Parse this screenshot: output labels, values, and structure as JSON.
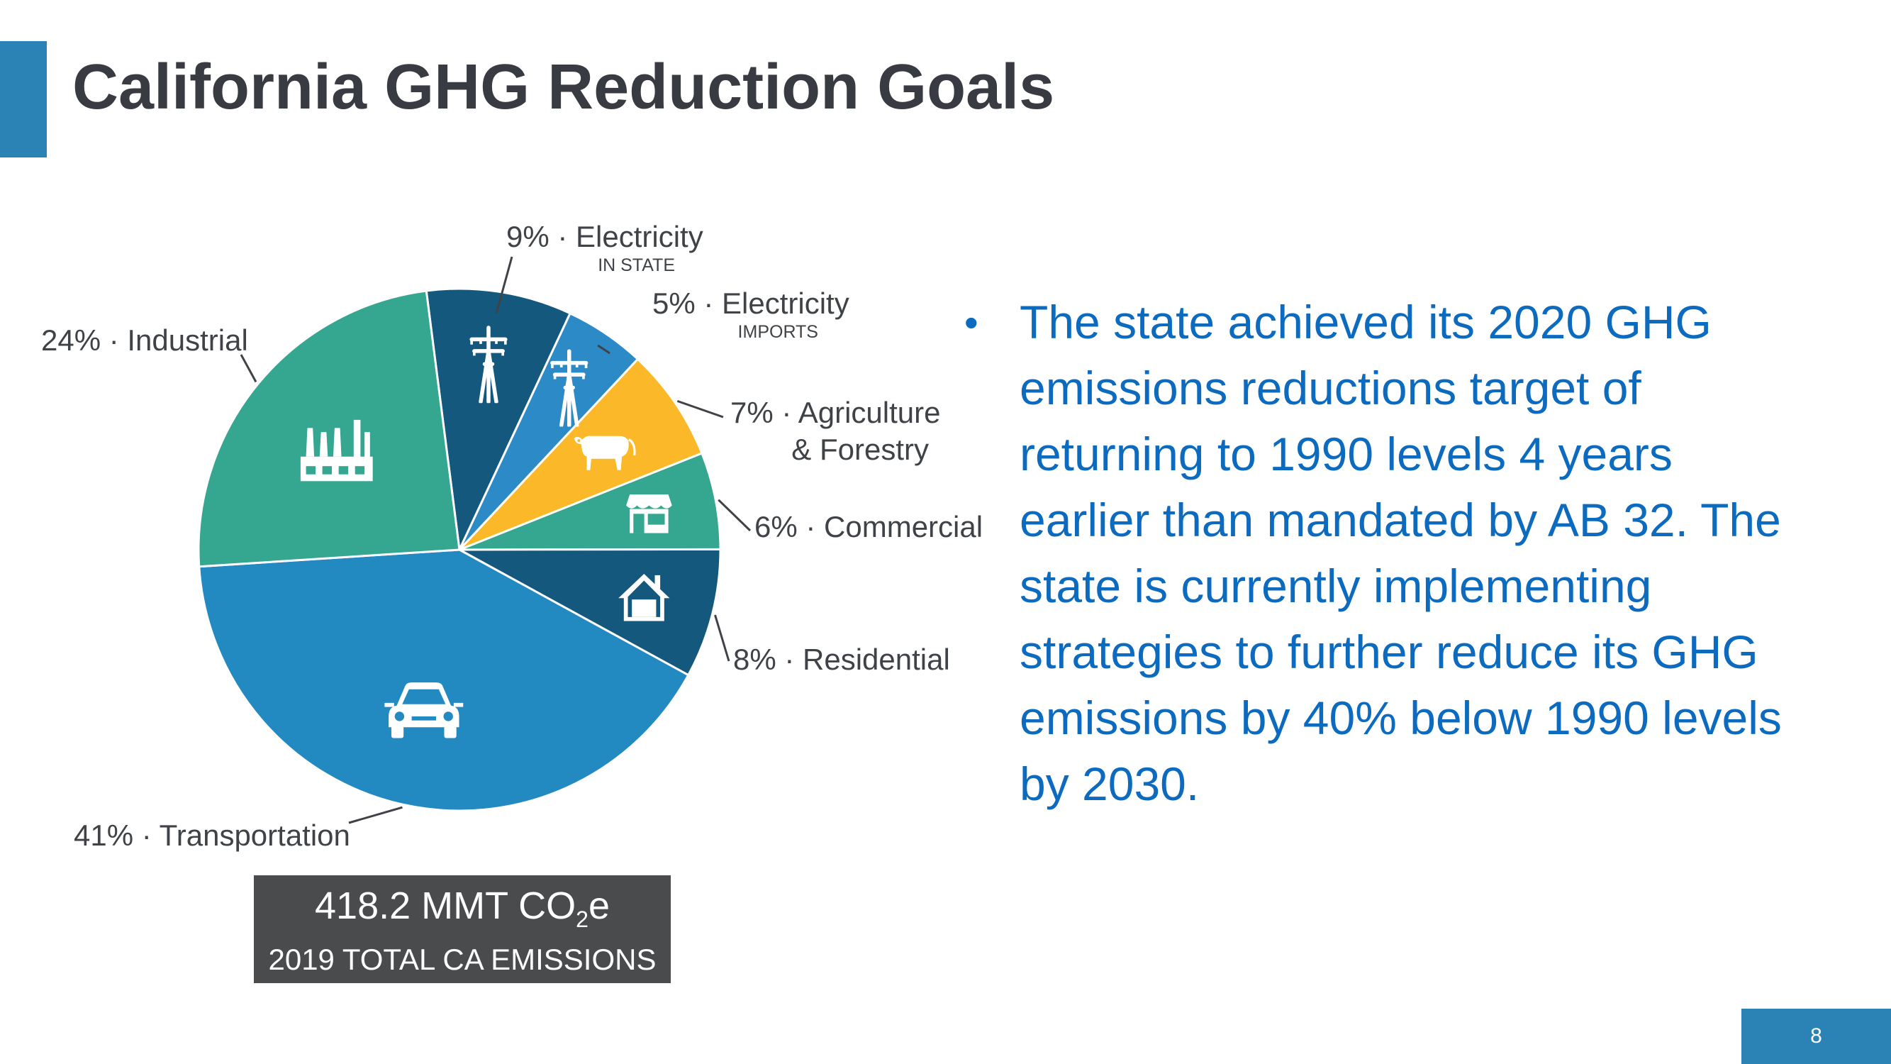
{
  "slide": {
    "title": "California GHG Reduction Goals",
    "accent_color": "#2b82b5",
    "page_number": "8"
  },
  "bullet": {
    "text": "The state achieved its 2020 GHG emissions reductions target of returning to 1990 levels 4 years earlier than mandated by AB 32. The state is currently implementing strategies to further reduce its GHG emissions by 40% below 1990 levels by 2030.",
    "color": "#0d6bbf"
  },
  "total": {
    "value": "418.2 MMT CO",
    "subscript": "2",
    "suffix": "e",
    "caption": "2019 TOTAL CA EMISSIONS"
  },
  "chart_data": {
    "type": "pie",
    "unit": "%",
    "slices": [
      {
        "name": "Electricity",
        "sub": "IN STATE",
        "value": 9,
        "pct_label": "9%",
        "color": "#14587d",
        "icon": "power-tower-icon"
      },
      {
        "name": "Electricity",
        "sub": "IMPORTS",
        "value": 5,
        "pct_label": "5%",
        "color": "#2c8ac6",
        "icon": "power-tower-icon"
      },
      {
        "name": "Agriculture & Forestry",
        "value": 7,
        "pct_label": "7%",
        "color": "#fbb829",
        "icon": "cow-icon"
      },
      {
        "name": "Commercial",
        "value": 6,
        "pct_label": "6%",
        "color": "#35a68f",
        "icon": "storefront-icon"
      },
      {
        "name": "Residential",
        "value": 8,
        "pct_label": "8%",
        "color": "#14587d",
        "icon": "house-icon"
      },
      {
        "name": "Transportation",
        "value": 41,
        "pct_label": "41%",
        "color": "#2389c1",
        "icon": "car-icon"
      },
      {
        "name": "Industrial",
        "value": 24,
        "pct_label": "24%",
        "color": "#35a68f",
        "icon": "factory-icon"
      }
    ]
  }
}
